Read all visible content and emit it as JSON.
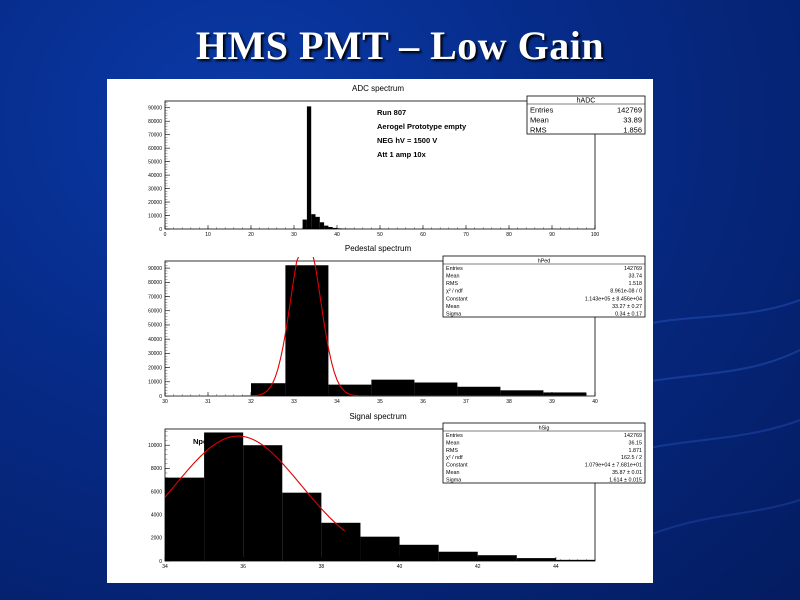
{
  "slide": {
    "title": "HMS PMT – Low Gain"
  },
  "chart_data": [
    {
      "type": "bar",
      "title": "ADC spectrum",
      "x_ticks": [
        0,
        10,
        20,
        30,
        40,
        50,
        60,
        70,
        80,
        90,
        100
      ],
      "y_ticks": [
        0,
        10000,
        20000,
        30000,
        40000,
        50000,
        60000,
        70000,
        80000,
        90000
      ],
      "xlim": [
        0,
        100
      ],
      "ylim": [
        0,
        95000
      ],
      "bins": [
        {
          "x0": 32,
          "x1": 33,
          "value": 7000
        },
        {
          "x0": 33,
          "x1": 34,
          "value": 91000
        },
        {
          "x0": 34,
          "x1": 35,
          "value": 11000
        },
        {
          "x0": 35,
          "x1": 36,
          "value": 9000
        },
        {
          "x0": 36,
          "x1": 37,
          "value": 5000
        },
        {
          "x0": 37,
          "x1": 38,
          "value": 2500
        },
        {
          "x0": 38,
          "x1": 39,
          "value": 1500
        },
        {
          "x0": 39,
          "x1": 40,
          "value": 800
        },
        {
          "x0": 40,
          "x1": 41,
          "value": 500
        },
        {
          "x0": 41,
          "x1": 42,
          "value": 300
        },
        {
          "x0": 42,
          "x1": 43,
          "value": 200
        },
        {
          "x0": 43,
          "x1": 44,
          "value": 150
        }
      ],
      "annotations": [
        "Run  807",
        "Aerogel Prototype empty",
        "NEG hV = 1500 V",
        "Att 1 amp 10x"
      ],
      "stats_title": "hADC",
      "stats": [
        {
          "label": "Entries",
          "value": "142769"
        },
        {
          "label": "Mean",
          "value": "33.89"
        },
        {
          "label": "RMS",
          "value": "1.856"
        }
      ]
    },
    {
      "type": "bar",
      "title": "Pedestal spectrum",
      "x_ticks": [
        30,
        31,
        32,
        33,
        34,
        35,
        36,
        37,
        38,
        39,
        40
      ],
      "y_ticks": [
        0,
        10000,
        20000,
        30000,
        40000,
        50000,
        60000,
        70000,
        80000,
        90000
      ],
      "xlim": [
        30,
        40
      ],
      "ylim": [
        0,
        95000
      ],
      "bins": [
        {
          "x0": 32,
          "x1": 32.8,
          "value": 9000
        },
        {
          "x0": 32.8,
          "x1": 33.8,
          "value": 92000
        },
        {
          "x0": 33.8,
          "x1": 34.8,
          "value": 8000
        },
        {
          "x0": 34.8,
          "x1": 35.8,
          "value": 11500
        },
        {
          "x0": 35.8,
          "x1": 36.8,
          "value": 9500
        },
        {
          "x0": 36.8,
          "x1": 37.8,
          "value": 6500
        },
        {
          "x0": 37.8,
          "x1": 38.8,
          "value": 4000
        },
        {
          "x0": 38.8,
          "x1": 39.8,
          "value": 2500
        }
      ],
      "fit": {
        "constant": 114300,
        "mean": 33.27,
        "sigma": 0.34
      },
      "stats_title": "hPed",
      "stats": [
        {
          "label": "Entries",
          "value": "142769"
        },
        {
          "label": "Mean",
          "value": "33.74"
        },
        {
          "label": "RMS",
          "value": "1.518"
        },
        {
          "label": "χ² / ndf",
          "value": "8.961e-08 / 0"
        },
        {
          "label": "Constant",
          "value": "1.143e+05 ± 8.456e+04"
        },
        {
          "label": "Mean",
          "value": "33.27 ± 0.27"
        },
        {
          "label": "Sigma",
          "value": "0.34 ± 0.17"
        }
      ]
    },
    {
      "type": "bar",
      "title": "Signal spectrum",
      "x_ticks": [
        34,
        36,
        38,
        40,
        42,
        44
      ],
      "y_ticks": [
        0,
        2000,
        4000,
        6000,
        8000,
        10000
      ],
      "xlim": [
        34,
        45
      ],
      "ylim": [
        0,
        11400
      ],
      "bins": [
        {
          "x0": 34,
          "x1": 35,
          "value": 7200
        },
        {
          "x0": 35,
          "x1": 36,
          "value": 11100
        },
        {
          "x0": 36,
          "x1": 37,
          "value": 10000
        },
        {
          "x0": 37,
          "x1": 38,
          "value": 5900
        },
        {
          "x0": 38,
          "x1": 39,
          "value": 3300
        },
        {
          "x0": 39,
          "x1": 40,
          "value": 2100
        },
        {
          "x0": 40,
          "x1": 41,
          "value": 1400
        },
        {
          "x0": 41,
          "x1": 42,
          "value": 800
        },
        {
          "x0": 42,
          "x1": 43,
          "value": 500
        },
        {
          "x0": 43,
          "x1": 44,
          "value": 250
        },
        {
          "x0": 44,
          "x1": 45,
          "value": 100
        }
      ],
      "fit": {
        "constant": 10790,
        "mean": 35.87,
        "sigma": 1.614,
        "x_range": [
          34,
          38.6
        ]
      },
      "annotations": [
        "Npe"
      ],
      "stats_title": "hSig",
      "stats": [
        {
          "label": "Entries",
          "value": "142769"
        },
        {
          "label": "Mean",
          "value": "36.15"
        },
        {
          "label": "RMS",
          "value": "1.871"
        },
        {
          "label": "χ² / ndf",
          "value": "162.5 / 2"
        },
        {
          "label": "Constant",
          "value": "1.079e+04 ± 7.681e+01"
        },
        {
          "label": "Mean",
          "value": "35.87 ± 0.01"
        },
        {
          "label": "Sigma",
          "value": "1.614 ± 0.015"
        }
      ]
    }
  ]
}
